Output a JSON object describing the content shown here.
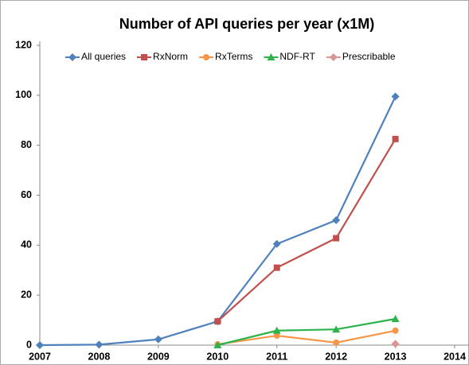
{
  "chart_data": {
    "type": "line",
    "title": "Number of API queries per year (x1M)",
    "x": [
      2007,
      2008,
      2009,
      2010,
      2011,
      2012,
      2013
    ],
    "series": [
      {
        "name": "All queries",
        "color": "#4f81bd",
        "marker": "diamond",
        "values": [
          0,
          0.2,
          2.3,
          9.5,
          40.5,
          50,
          99.5
        ]
      },
      {
        "name": "RxNorm",
        "color": "#c0504d",
        "marker": "square",
        "values": [
          null,
          null,
          null,
          9.5,
          31,
          42.8,
          82.5
        ]
      },
      {
        "name": "RxTerms",
        "color": "#f79646",
        "marker": "circle",
        "values": [
          null,
          null,
          null,
          0.3,
          3.8,
          1,
          5.8
        ]
      },
      {
        "name": "NDF-RT",
        "color": "#2db34a",
        "marker": "triangle",
        "values": [
          null,
          null,
          null,
          0,
          5.8,
          6.3,
          10.5
        ]
      },
      {
        "name": "Prescribable",
        "color": "#d99694",
        "marker": "diamond",
        "values": [
          null,
          null,
          null,
          null,
          null,
          null,
          0.5
        ]
      }
    ],
    "xlim": [
      2007,
      2014
    ],
    "xticks": [
      2007,
      2008,
      2009,
      2010,
      2011,
      2012,
      2013,
      2014
    ],
    "ylim": [
      0,
      120
    ],
    "yticks": [
      0,
      20,
      40,
      60,
      80,
      100,
      120
    ],
    "grid": false,
    "legend": "top"
  }
}
